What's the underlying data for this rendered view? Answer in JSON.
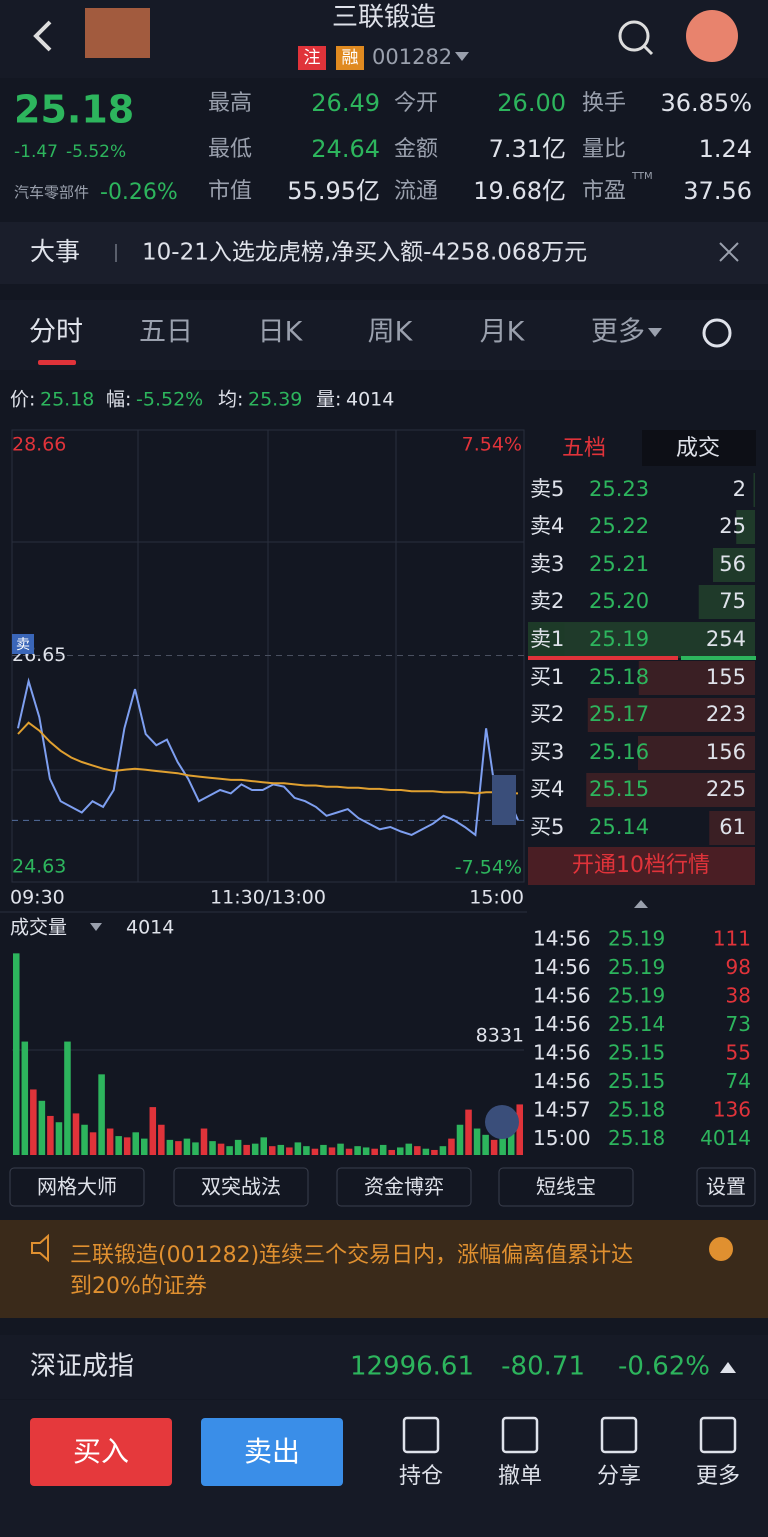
{
  "header": {
    "title": "三联锻造",
    "tags": [
      "注",
      "融"
    ],
    "code": "001282"
  },
  "quote": {
    "price": "25.18",
    "change": "-1.47",
    "change_pct": "-5.52%",
    "sector": "汽车零部件",
    "sector_pct": "-0.26%",
    "stats": [
      [
        "最高",
        "26.49"
      ],
      [
        "今开",
        "26.00"
      ],
      [
        "换手",
        "36.85%"
      ],
      [
        "最低",
        "24.64"
      ],
      [
        "金额",
        "7.31亿"
      ],
      [
        "量比",
        "1.24"
      ],
      [
        "市值",
        "55.95亿"
      ],
      [
        "流通",
        "19.68亿"
      ],
      [
        "市盈",
        "37.56"
      ]
    ],
    "ttm": "TTM"
  },
  "news": {
    "label": "大事",
    "text": "10-21入选龙虎榜,净买入额-4258.068万元"
  },
  "tabs": [
    "分时",
    "五日",
    "日K",
    "周K",
    "月K",
    "更多"
  ],
  "info": [
    [
      "价:",
      "25.18"
    ],
    [
      "幅:",
      "-5.52%"
    ],
    [
      "均:",
      "25.39"
    ],
    [
      "量:",
      "4014"
    ]
  ],
  "price_chart": {
    "type": "line",
    "ylim": [
      24.63,
      28.66
    ],
    "yticks": [
      28.66,
      26.65,
      24.63
    ],
    "pct_labels": [
      "7.54%",
      "-7.54%"
    ],
    "xticks": [
      "09:30",
      "11:30/13:00",
      "15:00"
    ],
    "marker": "卖",
    "series": [
      {
        "color": "#7e9ff0",
        "values": [
          26.0,
          26.42,
          26.1,
          25.55,
          25.35,
          25.3,
          25.25,
          25.35,
          25.3,
          25.45,
          26.0,
          26.35,
          25.95,
          25.85,
          25.9,
          25.7,
          25.55,
          25.35,
          25.4,
          25.45,
          25.42,
          25.5,
          25.45,
          25.45,
          25.5,
          25.48,
          25.38,
          25.35,
          25.3,
          25.22,
          25.25,
          25.28,
          25.2,
          25.15,
          25.1,
          25.12,
          25.08,
          25.05,
          25.1,
          25.15,
          25.22,
          25.18,
          25.12,
          25.05,
          26.0,
          25.35,
          25.4,
          25.18
        ]
      },
      {
        "color": "#e0a030",
        "values": [
          25.95,
          26.05,
          25.98,
          25.88,
          25.8,
          25.74,
          25.7,
          25.67,
          25.64,
          25.62,
          25.63,
          25.64,
          25.63,
          25.62,
          25.61,
          25.6,
          25.58,
          25.57,
          25.56,
          25.55,
          25.54,
          25.54,
          25.53,
          25.52,
          25.51,
          25.51,
          25.5,
          25.49,
          25.49,
          25.48,
          25.48,
          25.47,
          25.47,
          25.46,
          25.46,
          25.45,
          25.45,
          25.44,
          25.44,
          25.44,
          25.43,
          25.43,
          25.43,
          25.42,
          25.43,
          25.43,
          25.42,
          25.42
        ]
      }
    ]
  },
  "volume_chart": {
    "type": "bar",
    "label": "成交量",
    "current": "4014",
    "ylim": [
      0,
      16662
    ],
    "yticks": [
      8331
    ],
    "values": [
      16000,
      9000,
      5200,
      4300,
      3100,
      2600,
      9000,
      3300,
      2400,
      1800,
      6400,
      2100,
      1500,
      1400,
      1800,
      1300,
      3800,
      2400,
      1200,
      1100,
      1300,
      1000,
      2100,
      1100,
      900,
      700,
      1200,
      800,
      900,
      1400,
      700,
      800,
      600,
      1000,
      700,
      500,
      800,
      600,
      900,
      500,
      700,
      600,
      500,
      800,
      400,
      600,
      900,
      700,
      500,
      400,
      700,
      1300,
      2400,
      3600,
      2100,
      1600,
      1200,
      1800,
      2900,
      4014
    ],
    "colors": [
      "#2db55d",
      "#2db55d",
      "#e0333a",
      "#2db55d",
      "#e0333a",
      "#2db55d",
      "#2db55d",
      "#e0333a",
      "#2db55d",
      "#e0333a",
      "#2db55d",
      "#e0333a",
      "#2db55d",
      "#e0333a",
      "#2db55d",
      "#2db55d",
      "#e0333a",
      "#e0333a",
      "#2db55d",
      "#e0333a",
      "#2db55d",
      "#2db55d",
      "#e0333a",
      "#2db55d",
      "#e0333a",
      "#2db55d",
      "#2db55d",
      "#e0333a",
      "#2db55d",
      "#2db55d",
      "#e0333a",
      "#2db55d",
      "#e0333a",
      "#2db55d",
      "#2db55d",
      "#e0333a",
      "#2db55d",
      "#e0333a",
      "#2db55d",
      "#e0333a",
      "#2db55d",
      "#2db55d",
      "#e0333a",
      "#2db55d",
      "#e0333a",
      "#2db55d",
      "#2db55d",
      "#e0333a",
      "#2db55d",
      "#e0333a",
      "#2db55d",
      "#e0333a",
      "#2db55d",
      "#e0333a",
      "#2db55d",
      "#2db55d",
      "#e0333a",
      "#2db55d",
      "#2db55d",
      "#e0333a"
    ]
  },
  "book": {
    "tabs": [
      "五档",
      "成交"
    ],
    "sell": [
      [
        "卖5",
        "25.23",
        2
      ],
      [
        "卖4",
        "25.22",
        25
      ],
      [
        "卖3",
        "25.21",
        56
      ],
      [
        "卖2",
        "25.20",
        75
      ],
      [
        "卖1",
        "25.19",
        254
      ]
    ],
    "buy": [
      [
        "买1",
        "25.18",
        155
      ],
      [
        "买2",
        "25.17",
        223
      ],
      [
        "买3",
        "25.16",
        156
      ],
      [
        "买4",
        "25.15",
        225
      ],
      [
        "买5",
        "25.14",
        61
      ]
    ],
    "button": "开通10档行情"
  },
  "trades": [
    [
      "14:56",
      "25.19",
      111
    ],
    [
      "14:56",
      "25.19",
      98
    ],
    [
      "14:56",
      "25.19",
      38
    ],
    [
      "14:56",
      "25.14",
      73
    ],
    [
      "14:56",
      "25.15",
      55
    ],
    [
      "14:56",
      "25.15",
      74
    ],
    [
      "14:57",
      "25.18",
      136
    ],
    [
      "15:00",
      "25.18",
      4014
    ]
  ],
  "tools": [
    "网格大师",
    "双突战法",
    "资金博弈",
    "短线宝",
    "设置"
  ],
  "alert": {
    "line1": "三联锻造(001282)连续三个交易日内，涨幅偏离值累计达",
    "line2": "到20%的证券"
  },
  "index": {
    "name": "深证成指",
    "value": "12996.61",
    "change": "-80.71",
    "pct": "-0.62%"
  },
  "actions": {
    "buy": "买入",
    "sell": "卖出",
    "items": [
      "持仓",
      "撤单",
      "分享",
      "更多"
    ]
  }
}
